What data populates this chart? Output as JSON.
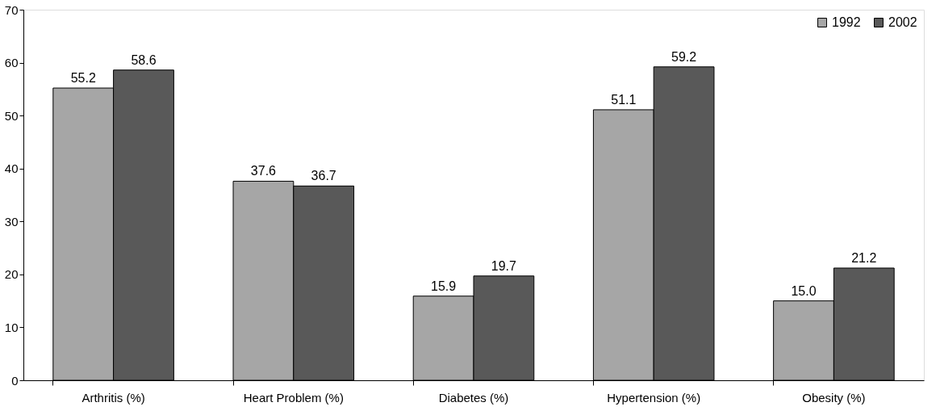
{
  "chart_data": {
    "type": "bar",
    "categories": [
      "Arthritis (%)",
      "Heart Problem (%)",
      "Diabetes (%)",
      "Hypertension (%)",
      "Obesity (%)"
    ],
    "series": [
      {
        "name": "1992",
        "color": "#a6a6a6",
        "values": [
          55.2,
          37.6,
          15.9,
          51.1,
          15.0
        ],
        "value_labels": [
          "55.2",
          "37.6",
          "15.9",
          "51.1",
          "15.0"
        ]
      },
      {
        "name": "2002",
        "color": "#595959",
        "values": [
          58.6,
          36.7,
          19.7,
          59.2,
          21.2
        ],
        "value_labels": [
          "58.6",
          "36.7",
          "19.7",
          "59.2",
          "21.2"
        ]
      }
    ],
    "ylim": [
      0,
      70
    ],
    "yticks": [
      0,
      10,
      20,
      30,
      40,
      50,
      60,
      70
    ],
    "grid": false,
    "legend": "top right"
  }
}
